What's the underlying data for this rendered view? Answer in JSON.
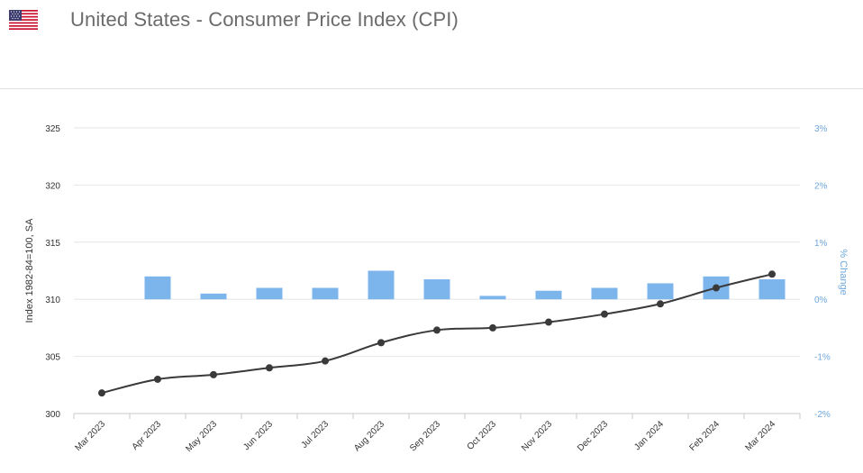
{
  "header": {
    "title": "United States - Consumer Price Index (CPI)",
    "flag_icon": "us-flag-icon"
  },
  "colors": {
    "line": "#3a3a3a",
    "bar": "#7cb5ec",
    "grid": "#e6e6e6",
    "right_axis": "#6fa8dc"
  },
  "chart_data": {
    "type": "bar+line",
    "categories": [
      "Mar 2023",
      "Apr 2023",
      "May 2023",
      "Jun 2023",
      "Jul 2023",
      "Aug 2023",
      "Sep 2023",
      "Oct 2023",
      "Nov 2023",
      "Dec 2023",
      "Jan 2024",
      "Feb 2024",
      "Mar 2024"
    ],
    "series": [
      {
        "type": "line",
        "axis": "left",
        "values": [
          301.8,
          303.0,
          303.4,
          304.0,
          304.6,
          306.2,
          307.3,
          307.5,
          308.0,
          308.7,
          309.6,
          311.0,
          312.2
        ]
      },
      {
        "type": "bar",
        "axis": "right",
        "values": [
          null,
          0.4,
          0.1,
          0.2,
          0.2,
          0.5,
          0.35,
          0.06,
          0.15,
          0.2,
          0.28,
          0.4,
          0.35
        ]
      }
    ],
    "y_left": {
      "label": "Index 1982-84=100, SA",
      "ticks": [
        "300",
        "305",
        "310",
        "315",
        "320",
        "325"
      ],
      "range": [
        300,
        325
      ]
    },
    "y_right": {
      "label": "% Change",
      "ticks": [
        "-2%",
        "-1%",
        "0%",
        "1%",
        "2%",
        "3%"
      ],
      "range": [
        -2,
        3
      ]
    },
    "grid": true
  }
}
